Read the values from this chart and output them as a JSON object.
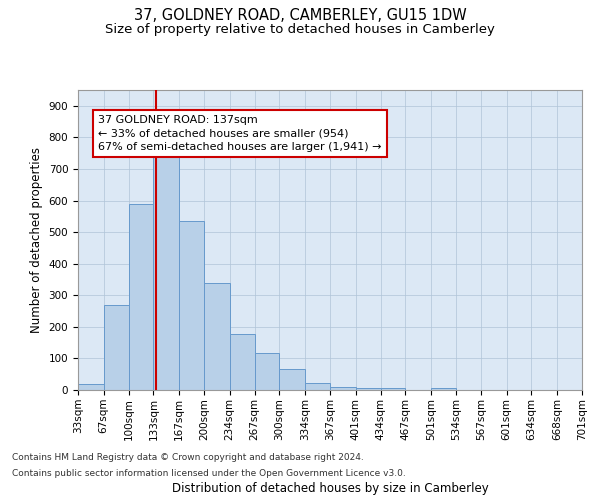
{
  "title": "37, GOLDNEY ROAD, CAMBERLEY, GU15 1DW",
  "subtitle": "Size of property relative to detached houses in Camberley",
  "xlabel": "Distribution of detached houses by size in Camberley",
  "ylabel": "Number of detached properties",
  "heights": [
    18,
    270,
    590,
    740,
    535,
    340,
    178,
    118,
    65,
    22,
    10,
    7,
    5,
    0,
    7,
    0,
    0,
    0,
    0,
    0
  ],
  "bin_edges": [
    33,
    67,
    100,
    133,
    167,
    200,
    234,
    267,
    300,
    334,
    367,
    401,
    434,
    467,
    501,
    534,
    567,
    601,
    634,
    668,
    701
  ],
  "property_size": 137,
  "bar_color": "#b8d0e8",
  "bar_edge_color": "#6699cc",
  "vline_color": "#cc0000",
  "annotation_text": "37 GOLDNEY ROAD: 137sqm\n← 33% of detached houses are smaller (954)\n67% of semi-detached houses are larger (1,941) →",
  "annotation_box_color": "#ffffff",
  "annotation_box_edge": "#cc0000",
  "footer_line1": "Contains HM Land Registry data © Crown copyright and database right 2024.",
  "footer_line2": "Contains public sector information licensed under the Open Government Licence v3.0.",
  "ylim": [
    0,
    950
  ],
  "yticks": [
    0,
    100,
    200,
    300,
    400,
    500,
    600,
    700,
    800,
    900
  ],
  "background_color": "#ffffff",
  "plot_bg_color": "#dce8f5",
  "grid_color": "#b0c4d8",
  "title_fontsize": 10.5,
  "subtitle_fontsize": 9.5,
  "axis_label_fontsize": 8.5,
  "tick_fontsize": 7.5,
  "annotation_fontsize": 8.0,
  "footer_fontsize": 6.5
}
